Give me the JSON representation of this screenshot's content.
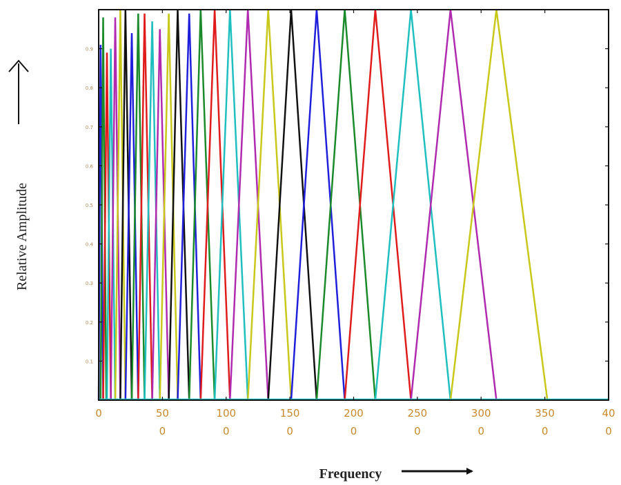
{
  "chart_data": {
    "type": "line",
    "xlabel": "Frequency",
    "ylabel": "Relative Amplitude",
    "xlim": [
      0,
      400
    ],
    "ylim": [
      0,
      1
    ],
    "x_tick_labels": [
      {
        "line1": "0",
        "line2": ""
      },
      {
        "line1": "50",
        "line2": "0"
      },
      {
        "line1": "100",
        "line2": "0"
      },
      {
        "line1": "150",
        "line2": "0"
      },
      {
        "line1": "200",
        "line2": "0"
      },
      {
        "line1": "250",
        "line2": "0"
      },
      {
        "line1": "300",
        "line2": "0"
      },
      {
        "line1": "350",
        "line2": "0"
      },
      {
        "line1": "40",
        "line2": "0"
      }
    ],
    "x_tick_values": [
      0,
      50,
      100,
      150,
      200,
      250,
      300,
      350,
      400
    ],
    "y_tick_values": [
      0.1,
      0.2,
      0.3,
      0.4,
      0.5,
      0.6,
      0.7,
      0.8,
      0.9
    ],
    "y_tick_labels": [
      "0.1",
      "0.2",
      "0.3",
      "0.4",
      "0.5",
      "0.6",
      "0.7",
      "0.8",
      "0.9"
    ],
    "grid": false,
    "colors": [
      "#1f1fdb",
      "#1a8a2a",
      "#e01b1b",
      "#1fbfbf",
      "#b02ab0",
      "#c8c81a",
      "#111111"
    ],
    "filters": [
      {
        "start": 0,
        "peak": 1.5,
        "end": 3.5,
        "amp": 0.91
      },
      {
        "start": 1.5,
        "peak": 3.5,
        "end": 6,
        "amp": 0.98
      },
      {
        "start": 3.5,
        "peak": 6.5,
        "end": 9.5,
        "amp": 0.89
      },
      {
        "start": 6.5,
        "peak": 9.5,
        "end": 13,
        "amp": 0.9
      },
      {
        "start": 9.5,
        "peak": 13,
        "end": 17,
        "amp": 0.98
      },
      {
        "start": 13,
        "peak": 17,
        "end": 21,
        "amp": 1.0
      },
      {
        "start": 17,
        "peak": 21,
        "end": 26,
        "amp": 1.0
      },
      {
        "start": 21,
        "peak": 26,
        "end": 31,
        "amp": 0.94
      },
      {
        "start": 26,
        "peak": 31,
        "end": 36,
        "amp": 0.99
      },
      {
        "start": 31,
        "peak": 36,
        "end": 42,
        "amp": 0.99
      },
      {
        "start": 36,
        "peak": 42,
        "end": 48,
        "amp": 0.97
      },
      {
        "start": 42,
        "peak": 48,
        "end": 55,
        "amp": 0.95
      },
      {
        "start": 48,
        "peak": 55,
        "end": 62,
        "amp": 0.99
      },
      {
        "start": 55,
        "peak": 62,
        "end": 71,
        "amp": 1.0
      },
      {
        "start": 62,
        "peak": 71,
        "end": 80,
        "amp": 0.99
      },
      {
        "start": 71,
        "peak": 80,
        "end": 91,
        "amp": 1.0
      },
      {
        "start": 80,
        "peak": 91,
        "end": 103,
        "amp": 1.0
      },
      {
        "start": 91,
        "peak": 103,
        "end": 117,
        "amp": 1.0
      },
      {
        "start": 103,
        "peak": 117,
        "end": 133,
        "amp": 1.0
      },
      {
        "start": 117,
        "peak": 133,
        "end": 151,
        "amp": 1.0
      },
      {
        "start": 133,
        "peak": 151,
        "end": 171,
        "amp": 1.0
      },
      {
        "start": 151,
        "peak": 171,
        "end": 193,
        "amp": 1.0
      },
      {
        "start": 171,
        "peak": 193,
        "end": 217,
        "amp": 1.0
      },
      {
        "start": 193,
        "peak": 217,
        "end": 245,
        "amp": 1.0
      },
      {
        "start": 217,
        "peak": 245,
        "end": 276,
        "amp": 1.0
      },
      {
        "start": 245,
        "peak": 276,
        "end": 312,
        "amp": 1.0
      },
      {
        "start": 276,
        "peak": 312,
        "end": 352,
        "amp": 1.0
      }
    ]
  }
}
